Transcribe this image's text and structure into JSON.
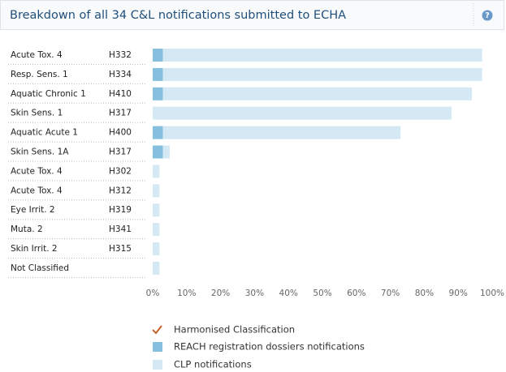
{
  "chart_data": {
    "type": "stacked-barh",
    "title": "Breakdown of all 34 C&L notifications submitted to ECHA",
    "help_icon": "?",
    "categories": [
      "Acute Tox. 4",
      "Resp. Sens. 1",
      "Aquatic Chronic 1",
      "Skin Sens. 1",
      "Aquatic Acute 1",
      "Skin Sens. 1A",
      "Acute Tox. 4",
      "Acute Tox. 4",
      "Eye Irrit. 2",
      "Muta. 2",
      "Skin Irrit. 2",
      "Not Classified"
    ],
    "codes": [
      "H332",
      "H334",
      "H410",
      "H317",
      "H400",
      "H317",
      "H302",
      "H312",
      "H319",
      "H341",
      "H315",
      null
    ],
    "series": [
      {
        "name": "REACH registration dossiers notifications",
        "color": "#86c0de",
        "values": [
          3,
          3,
          3,
          0,
          3,
          3,
          0,
          0,
          0,
          0,
          0,
          0
        ]
      },
      {
        "name": "CLP notifications",
        "color": "#d4e9f4",
        "values": [
          94,
          94,
          91,
          88,
          70,
          2,
          2,
          2,
          2,
          2,
          2,
          2
        ]
      }
    ],
    "marker_legend": {
      "name": "Harmonised Classification",
      "color": "#c8642a"
    },
    "xlim": [
      0,
      100
    ],
    "xticks": [
      {
        "value": 0,
        "label": "0%"
      },
      {
        "value": 10,
        "label": "10%"
      },
      {
        "value": 20,
        "label": "20%"
      },
      {
        "value": 30,
        "label": "30%"
      },
      {
        "value": 40,
        "label": "40%"
      },
      {
        "value": 50,
        "label": "50%"
      },
      {
        "value": 60,
        "label": "60%"
      },
      {
        "value": 70,
        "label": "70%"
      },
      {
        "value": 80,
        "label": "80%"
      },
      {
        "value": 90,
        "label": "90%"
      },
      {
        "value": 100,
        "label": "100%"
      }
    ]
  }
}
